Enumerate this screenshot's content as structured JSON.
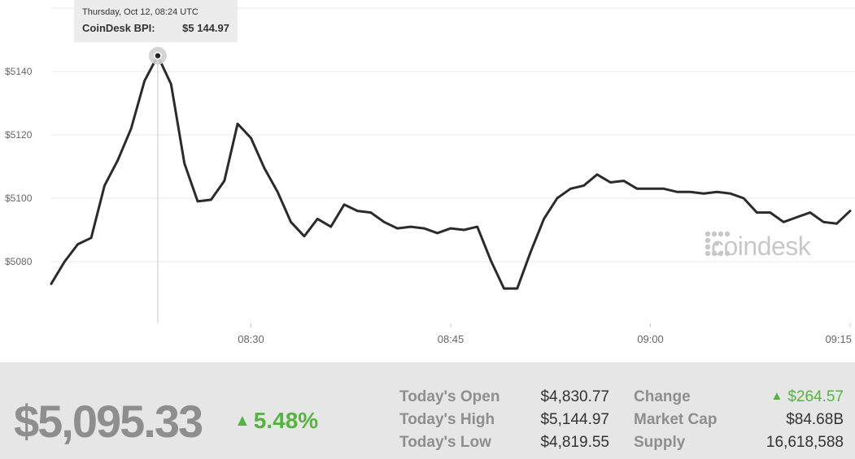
{
  "chart_data": {
    "type": "line",
    "series": [
      {
        "name": "CoinDesk BPI",
        "values": [
          [
            0,
            5073
          ],
          [
            2,
            5080
          ],
          [
            4,
            5085.5
          ],
          [
            6,
            5087.5
          ],
          [
            8,
            5104
          ],
          [
            10,
            5112
          ],
          [
            12,
            5122
          ],
          [
            14,
            5137
          ],
          [
            16,
            5144.97
          ],
          [
            18,
            5136
          ],
          [
            20,
            5111
          ],
          [
            22,
            5099
          ],
          [
            24,
            5099.5
          ],
          [
            26,
            5105.5
          ],
          [
            28,
            5123.5
          ],
          [
            30,
            5119
          ],
          [
            32,
            5109.5
          ],
          [
            34,
            5102
          ],
          [
            36,
            5092.5
          ],
          [
            38,
            5088
          ],
          [
            40,
            5093.5
          ],
          [
            42,
            5091
          ],
          [
            44,
            5098
          ],
          [
            46,
            5096
          ],
          [
            48,
            5095.5
          ],
          [
            50,
            5092.5
          ],
          [
            52,
            5090.5
          ],
          [
            54,
            5091
          ],
          [
            56,
            5090.5
          ],
          [
            58,
            5089
          ],
          [
            60,
            5090.5
          ],
          [
            62,
            5090
          ],
          [
            64,
            5091
          ],
          [
            66,
            5080.5
          ],
          [
            68,
            5071.5
          ],
          [
            70,
            5071.5
          ],
          [
            72,
            5083
          ],
          [
            74,
            5093.5
          ],
          [
            76,
            5100
          ],
          [
            78,
            5103
          ],
          [
            80,
            5104
          ],
          [
            82,
            5107.5
          ],
          [
            84,
            5105
          ],
          [
            86,
            5105.5
          ],
          [
            88,
            5103
          ],
          [
            90,
            5103
          ],
          [
            92,
            5103
          ],
          [
            94,
            5102
          ],
          [
            96,
            5102
          ],
          [
            98,
            5101.5
          ],
          [
            100,
            5102
          ],
          [
            102,
            5101.5
          ],
          [
            104,
            5100
          ],
          [
            106,
            5095.5
          ],
          [
            108,
            5095.5
          ],
          [
            110,
            5092.5
          ],
          [
            112,
            5094
          ],
          [
            114,
            5095.5
          ],
          [
            116,
            5092.5
          ],
          [
            118,
            5092
          ],
          [
            120,
            5096
          ]
        ]
      }
    ],
    "x_ticks": [
      {
        "t": 30,
        "label": "08:30"
      },
      {
        "t": 60,
        "label": "08:45"
      },
      {
        "t": 90,
        "label": "09:00"
      },
      {
        "t": 120,
        "label": "09:15"
      }
    ],
    "y_ticks": [
      {
        "v": 5080,
        "label": "$5080"
      },
      {
        "v": 5100,
        "label": "$5100"
      },
      {
        "v": 5120,
        "label": "$5120"
      },
      {
        "v": 5140,
        "label": "$5140"
      }
    ],
    "highlight": {
      "t": 16,
      "v": 5144.97
    },
    "ylim": [
      5060,
      5160
    ],
    "grid": true,
    "line_color": "#2b2b2b"
  },
  "tooltip": {
    "date": "Thursday, Oct 12, 08:24 UTC",
    "label": "CoinDesk BPI:",
    "value": "$5 144.97"
  },
  "watermark": {
    "text": "coindesk",
    "icon": "coindesk-logo-icon"
  },
  "summary": {
    "price": "$5,095.33",
    "percent_change": "5.48%",
    "percent_arrow": "▲",
    "accent_color": "#55b440"
  },
  "stats": {
    "open_label": "Today's Open",
    "open_value": "$4,830.77",
    "high_label": "Today's High",
    "high_value": "$5,144.97",
    "low_label": "Today's Low",
    "low_value": "$4,819.55",
    "change_label": "Change",
    "change_value": "$264.57",
    "change_arrow": "▲",
    "marketcap_label": "Market Cap",
    "marketcap_value": "$84.68B",
    "supply_label": "Supply",
    "supply_value": "16,618,588"
  }
}
